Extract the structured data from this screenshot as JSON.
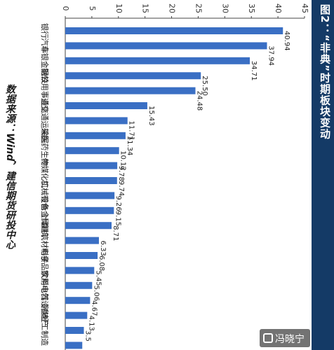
{
  "title": "图2：“非典”时期板块变动",
  "source": "数据来源：Wind，建信期货研投中心",
  "watermark": "冯晓宁",
  "chart_data": {
    "type": "bar",
    "orientation": "horizontal",
    "rotation": "rotated 90° clockwise",
    "categories": [
      "银行",
      "汽车",
      "非银金融",
      "钢铁",
      "公用事业",
      "通信",
      "交通运输",
      "采掘",
      "医药生物",
      "传媒",
      "化工",
      "机械设备",
      "有色金属",
      "计算机",
      "建筑材料",
      "电子",
      "食品饮料",
      "家用电器",
      "电气设备",
      "房地产",
      "轻工制造",
      ""
    ],
    "values": [
      40.94,
      37.94,
      34.71,
      25.5,
      24.48,
      15.43,
      11.71,
      11.34,
      10.12,
      9.78,
      9.74,
      9.26,
      9.15,
      8.71,
      6.33,
      6.08,
      5.45,
      5.06,
      4.67,
      4.13,
      3.5,
      3.2
    ],
    "value_labels": [
      "40.94",
      "37.94",
      "34.71",
      "25.50",
      "24.48",
      "15.43",
      "11.71",
      "11.34",
      "10.12",
      "9.78",
      "9.74",
      "9.26",
      "9.15",
      "8.71",
      "6.33",
      "6.08",
      "5.45",
      "5.06",
      "4.67",
      "4.13",
      "3.5",
      ""
    ],
    "axis": {
      "min": 0,
      "max": 45,
      "ticks": [
        0,
        5,
        10,
        15,
        20,
        25,
        30,
        35,
        40,
        45
      ]
    },
    "grid": false,
    "bar_color": "#3a6fc4",
    "title_bar_color": "#143a66"
  }
}
